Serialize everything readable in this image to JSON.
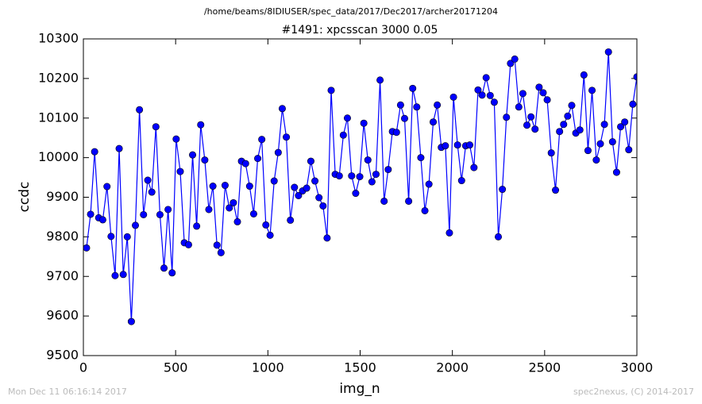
{
  "chart_data": {
    "type": "line",
    "suptitle": "/home/beams/8IDIUSER/spec_data/2017/Dec2017/archer20171204",
    "title": "#1491: xpcsscan 3000 0.05",
    "xlabel": "img_n",
    "ylabel": "ccdc",
    "footer_left": "Mon Dec 11 06:16:14 2017",
    "footer_right": "spec2nexus, (C) 2014-2017",
    "xlim": [
      0,
      3000
    ],
    "xticks": [
      0,
      500,
      1000,
      1500,
      2000,
      2500,
      3000
    ],
    "ylim": [
      9500,
      10300
    ],
    "yticks": [
      9500,
      9600,
      9700,
      9800,
      9900,
      10000,
      10100,
      10200,
      10300
    ],
    "grid": false,
    "x": [
      17,
      39,
      61,
      83,
      105,
      128,
      150,
      172,
      194,
      216,
      238,
      260,
      282,
      304,
      326,
      349,
      371,
      393,
      415,
      437,
      459,
      481,
      503,
      525,
      547,
      570,
      592,
      614,
      636,
      658,
      680,
      702,
      724,
      746,
      768,
      791,
      813,
      835,
      857,
      879,
      901,
      923,
      945,
      967,
      989,
      1012,
      1034,
      1056,
      1078,
      1100,
      1122,
      1144,
      1166,
      1188,
      1210,
      1233,
      1255,
      1277,
      1299,
      1321,
      1343,
      1365,
      1387,
      1409,
      1431,
      1454,
      1476,
      1498,
      1520,
      1542,
      1564,
      1586,
      1608,
      1630,
      1652,
      1675,
      1697,
      1719,
      1741,
      1763,
      1785,
      1807,
      1829,
      1851,
      1873,
      1896,
      1918,
      1940,
      1962,
      1984,
      2006,
      2028,
      2050,
      2072,
      2094,
      2117,
      2139,
      2161,
      2183,
      2205,
      2227,
      2249,
      2271,
      2293,
      2315,
      2338,
      2360,
      2382,
      2404,
      2426,
      2448,
      2470,
      2492,
      2514,
      2536,
      2559,
      2581,
      2603,
      2625,
      2647,
      2669,
      2691,
      2713,
      2735,
      2757,
      2780,
      2802,
      2824,
      2846,
      2868,
      2890,
      2912,
      2934,
      2956,
      2978,
      3000
    ],
    "series": [
      {
        "color": "#0000ff",
        "values": [
          9772,
          9857,
          10015,
          9848,
          9843,
          9927,
          9801,
          9702,
          10023,
          9705,
          9800,
          9586,
          9829,
          10121,
          9856,
          9943,
          9913,
          10078,
          9856,
          9721,
          9869,
          9709,
          10047,
          9965,
          9785,
          9780,
          10007,
          9827,
          10083,
          9994,
          9869,
          9928,
          9779,
          9760,
          9930,
          9873,
          9886,
          9838,
          9991,
          9985,
          9928,
          9858,
          9998,
          10046,
          9830,
          9804,
          9941,
          10013,
          10124,
          10052,
          9842,
          9925,
          9904,
          9916,
          9923,
          9991,
          9941,
          9899,
          9878,
          9797,
          10170,
          9958,
          9954,
          10057,
          10100,
          9954,
          9910,
          9952,
          10087,
          9994,
          9939,
          9958,
          10196,
          9890,
          9970,
          10066,
          10064,
          10133,
          10099,
          9890,
          10175,
          10128,
          10000,
          9866,
          9933,
          10090,
          10133,
          10026,
          10030,
          9810,
          10153,
          10032,
          9942,
          10030,
          10032,
          9975,
          10171,
          10158,
          10202,
          10157,
          10140,
          9800,
          9920,
          10102,
          10238,
          10249,
          10128,
          10162,
          10082,
          10103,
          10072,
          10178,
          10164,
          10146,
          10012,
          9918,
          10066,
          10084,
          10105,
          10132,
          10062,
          10070,
          10209,
          10018,
          10170,
          9994,
          10035,
          10084,
          10267,
          10040,
          9963,
          10078,
          10090,
          10020,
          10135,
          10204
        ]
      }
    ]
  }
}
